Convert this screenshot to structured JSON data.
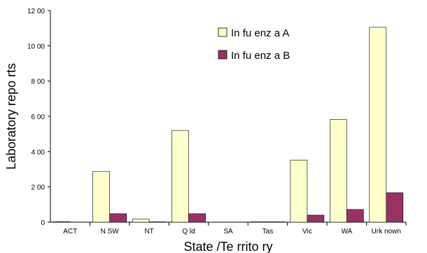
{
  "chart_data": {
    "type": "bar",
    "categories": [
      "ACT",
      "N SW",
      "NT",
      "Q ld",
      "SA",
      "Tas",
      "Vic",
      "WA",
      "Urk nown"
    ],
    "series": [
      {
        "name": "In fu enz a A",
        "color": "#ffffcc",
        "values": [
          3,
          287,
          18,
          520,
          0,
          2,
          352,
          582,
          1105
        ]
      },
      {
        "name": "In fu enz a B",
        "color": "#993366",
        "values": [
          0,
          48,
          2,
          48,
          0,
          2,
          40,
          72,
          167
        ]
      }
    ],
    "xlabel": "State /Te rrito ry",
    "ylabel": "Laboratory repo rts",
    "ylim": [
      0,
      1200
    ],
    "yticks": [
      0,
      200,
      400,
      600,
      800,
      1000,
      1200
    ],
    "ytick_labels": [
      "0",
      "2 00",
      "4 00",
      "6 00",
      "8 00",
      "10 00",
      "12 00"
    ],
    "legend_position": "top-center",
    "grid": false
  }
}
